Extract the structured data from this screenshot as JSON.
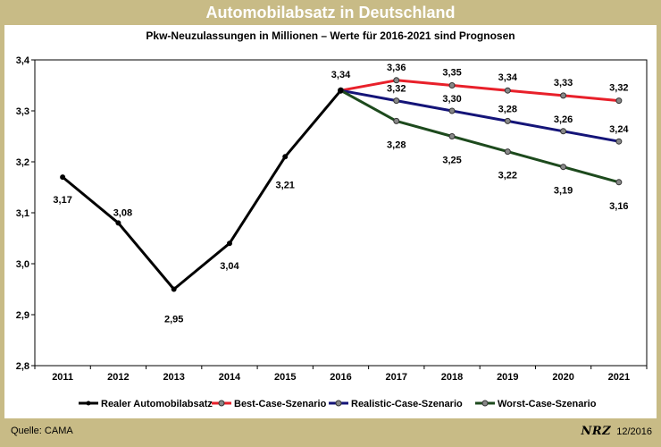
{
  "page": {
    "header_title": "Automobilabsatz in Deutschland",
    "source": "Quelle: CAMA",
    "publisher_logo": "NRZ",
    "date": "12/2016"
  },
  "colors": {
    "background": "#c8bb86",
    "real": "#000000",
    "best": "#e8202a",
    "realistic": "#141478",
    "worst": "#1d4a1d"
  },
  "chart_data": {
    "type": "line",
    "title": "Pkw-Neuzulassungen in Millionen – Werte für 2016-2021 sind Prognosen",
    "xlabel": "",
    "ylabel": "",
    "categories": [
      "2011",
      "2012",
      "2013",
      "2014",
      "2015",
      "2016",
      "2017",
      "2018",
      "2019",
      "2020",
      "2021"
    ],
    "ylim": [
      2.8,
      3.4
    ],
    "yticks": [
      2.8,
      2.9,
      3.0,
      3.1,
      3.2,
      3.3,
      3.4
    ],
    "ytick_labels": [
      "2,8",
      "2,9",
      "3,0",
      "3,1",
      "3,2",
      "3,3",
      "3,4"
    ],
    "grid": false,
    "legend_position": "bottom",
    "series": [
      {
        "name": "Realer Automobilabsatz",
        "key": "real",
        "x": [
          "2011",
          "2012",
          "2013",
          "2014",
          "2015",
          "2016"
        ],
        "values": [
          3.17,
          3.08,
          2.95,
          3.04,
          3.21,
          3.34
        ],
        "labels": [
          "3,17",
          "3,08",
          "2,95",
          "3,04",
          "3,21",
          "3,34"
        ]
      },
      {
        "name": "Best-Case-Szenario",
        "key": "best",
        "x": [
          "2016",
          "2017",
          "2018",
          "2019",
          "2020",
          "2021"
        ],
        "values": [
          3.34,
          3.36,
          3.35,
          3.34,
          3.33,
          3.32
        ],
        "labels": [
          "",
          "3,36",
          "3,35",
          "3,34",
          "3,33",
          "3,32"
        ]
      },
      {
        "name": "Realistic-Case-Szenario",
        "key": "realistic",
        "x": [
          "2016",
          "2017",
          "2018",
          "2019",
          "2020",
          "2021"
        ],
        "values": [
          3.34,
          3.32,
          3.3,
          3.28,
          3.26,
          3.24
        ],
        "labels": [
          "",
          "3,32",
          "3,30",
          "3,28",
          "3,26",
          "3,24"
        ]
      },
      {
        "name": "Worst-Case-Szenario",
        "key": "worst",
        "x": [
          "2016",
          "2017",
          "2018",
          "2019",
          "2020",
          "2021"
        ],
        "values": [
          3.34,
          3.28,
          3.25,
          3.22,
          3.19,
          3.16
        ],
        "labels": [
          "",
          "3,28",
          "3,25",
          "3,22",
          "3,19",
          "3,16"
        ]
      }
    ]
  }
}
